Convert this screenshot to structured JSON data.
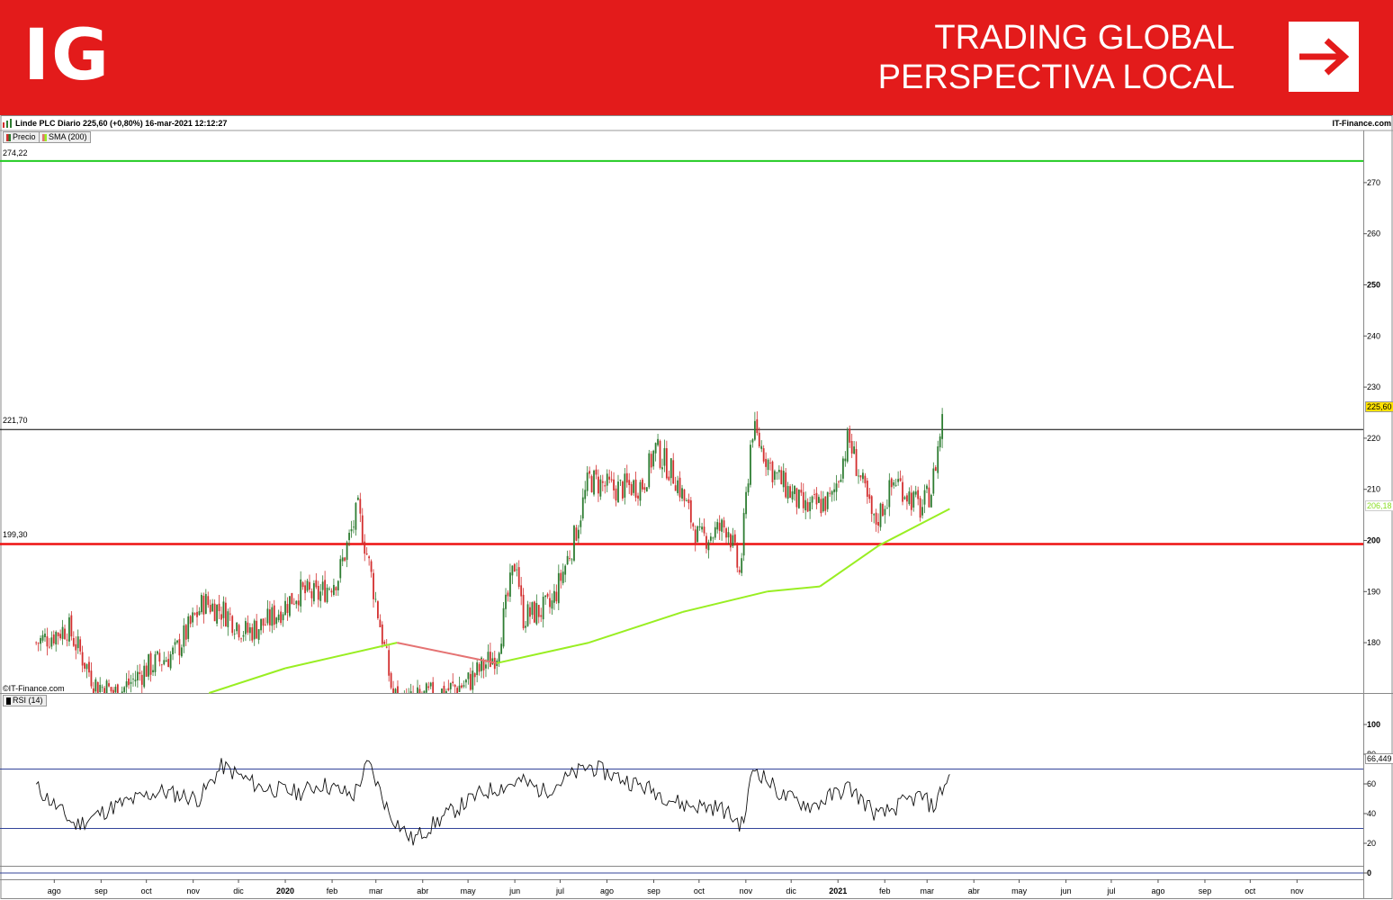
{
  "banner": {
    "logo_text": "IG",
    "tagline_line1": "TRADING GLOBAL",
    "tagline_line2": "PERSPECTIVA LOCAL",
    "arrow_icon": "arrow-right-icon",
    "color": "#e31b1b"
  },
  "header": {
    "title": "Linde PLC Diario 225,60 (+0,80%) 16-mar-2021 12:12:27",
    "brand": "IT-Finance.com",
    "legend_price": "Precio",
    "legend_sma": "SMA (200)",
    "watermark": "©IT-Finance.com",
    "rsi_legend": "RSI (14)"
  },
  "levels": {
    "upper_label": "274,22",
    "middle_label": "221,70",
    "lower_label": "199,30",
    "last_price_tag": "225,60",
    "sma_tag": "206,18",
    "rsi_tag": "66,449"
  },
  "chart_data": [
    {
      "type": "candlestick",
      "title": "Linde PLC Diario 225,60 (+0,80%) 16-mar-2021 12:12:27",
      "series": [
        {
          "name": "Precio",
          "x": [
            "2019-07-20",
            "2019-08-10",
            "2019-08-28",
            "2019-09-12",
            "2019-10-01",
            "2019-10-20",
            "2019-11-08",
            "2019-11-22",
            "2019-12-06",
            "2019-12-20",
            "2020-01-10",
            "2020-01-22",
            "2020-02-05",
            "2020-02-18",
            "2020-02-25",
            "2020-03-06",
            "2020-03-12",
            "2020-03-18",
            "2020-04-10",
            "2020-04-30",
            "2020-05-20",
            "2020-06-02",
            "2020-06-06",
            "2020-06-25",
            "2020-07-10",
            "2020-07-20",
            "2020-08-05",
            "2020-08-25",
            "2020-09-02",
            "2020-09-16",
            "2020-10-01",
            "2020-10-20",
            "2020-10-28",
            "2020-11-05",
            "2020-11-20",
            "2020-12-10",
            "2020-12-28",
            "2021-01-08",
            "2021-01-25",
            "2021-02-08",
            "2021-02-25",
            "2021-03-04",
            "2021-03-12"
          ],
          "values": [
            180,
            183,
            172,
            170,
            175,
            178,
            188,
            186,
            182,
            184,
            190,
            189,
            193,
            206,
            196,
            180,
            170,
            168,
            170,
            172,
            178,
            197,
            185,
            187,
            200,
            212,
            210,
            211,
            218,
            212,
            200,
            203,
            193,
            222,
            213,
            206,
            208,
            220,
            203,
            212,
            206,
            210,
            225.6
          ]
        },
        {
          "name": "SMA (200)",
          "x": [
            "2019-10-20",
            "2020-01-01",
            "2020-03-15",
            "2020-05-20",
            "2020-07-20",
            "2020-09-20",
            "2020-11-15",
            "2020-12-20",
            "2021-01-28",
            "2021-03-16"
          ],
          "values": [
            168,
            175,
            180,
            176,
            180,
            186,
            190,
            191,
            199,
            206.18
          ]
        }
      ],
      "horizontal_levels": [
        274.22,
        221.7,
        199.3
      ],
      "ylim": [
        167,
        280
      ],
      "yticks": [
        180,
        190,
        200,
        210,
        220,
        230,
        240,
        250,
        260,
        270
      ],
      "xtick_labels": [
        "ago",
        "sep",
        "oct",
        "nov",
        "dic",
        "2020",
        "feb",
        "mar",
        "abr",
        "may",
        "jun",
        "jul",
        "ago",
        "sep",
        "oct",
        "nov",
        "dic",
        "2021",
        "feb",
        "mar",
        "abr",
        "may",
        "jun",
        "jul",
        "ago",
        "sep",
        "oct",
        "nov"
      ],
      "colors": {
        "up": "#2e7d32",
        "down": "#d32f2f",
        "sma_above": "#99ee22",
        "sma_below": "#e57373",
        "support": "#ee1111",
        "resistance_upper": "#22cc22",
        "resistance_mid": "#000000"
      }
    },
    {
      "type": "line",
      "title": "RSI (14)",
      "series": [
        {
          "name": "RSI (14)",
          "x": [
            "2019-07-20",
            "2019-08-15",
            "2019-09-10",
            "2019-10-10",
            "2019-11-05",
            "2019-11-20",
            "2019-12-15",
            "2020-01-10",
            "2020-01-25",
            "2020-02-15",
            "2020-02-25",
            "2020-03-10",
            "2020-03-25",
            "2020-04-15",
            "2020-05-10",
            "2020-06-05",
            "2020-06-20",
            "2020-07-20",
            "2020-08-15",
            "2020-09-02",
            "2020-09-20",
            "2020-10-15",
            "2020-10-30",
            "2020-11-06",
            "2020-11-25",
            "2020-12-15",
            "2021-01-08",
            "2021-01-28",
            "2021-02-15",
            "2021-02-25",
            "2021-03-05",
            "2021-03-16"
          ],
          "values": [
            58,
            32,
            45,
            55,
            50,
            72,
            58,
            54,
            60,
            52,
            74,
            40,
            22,
            38,
            54,
            62,
            55,
            72,
            62,
            55,
            46,
            44,
            32,
            72,
            52,
            45,
            58,
            38,
            48,
            52,
            44,
            66.449
          ]
        }
      ],
      "horizontal_levels": [
        70,
        30
      ],
      "ylim": [
        0,
        110
      ],
      "yticks": [
        0,
        20,
        40,
        60,
        80,
        100
      ]
    }
  ]
}
